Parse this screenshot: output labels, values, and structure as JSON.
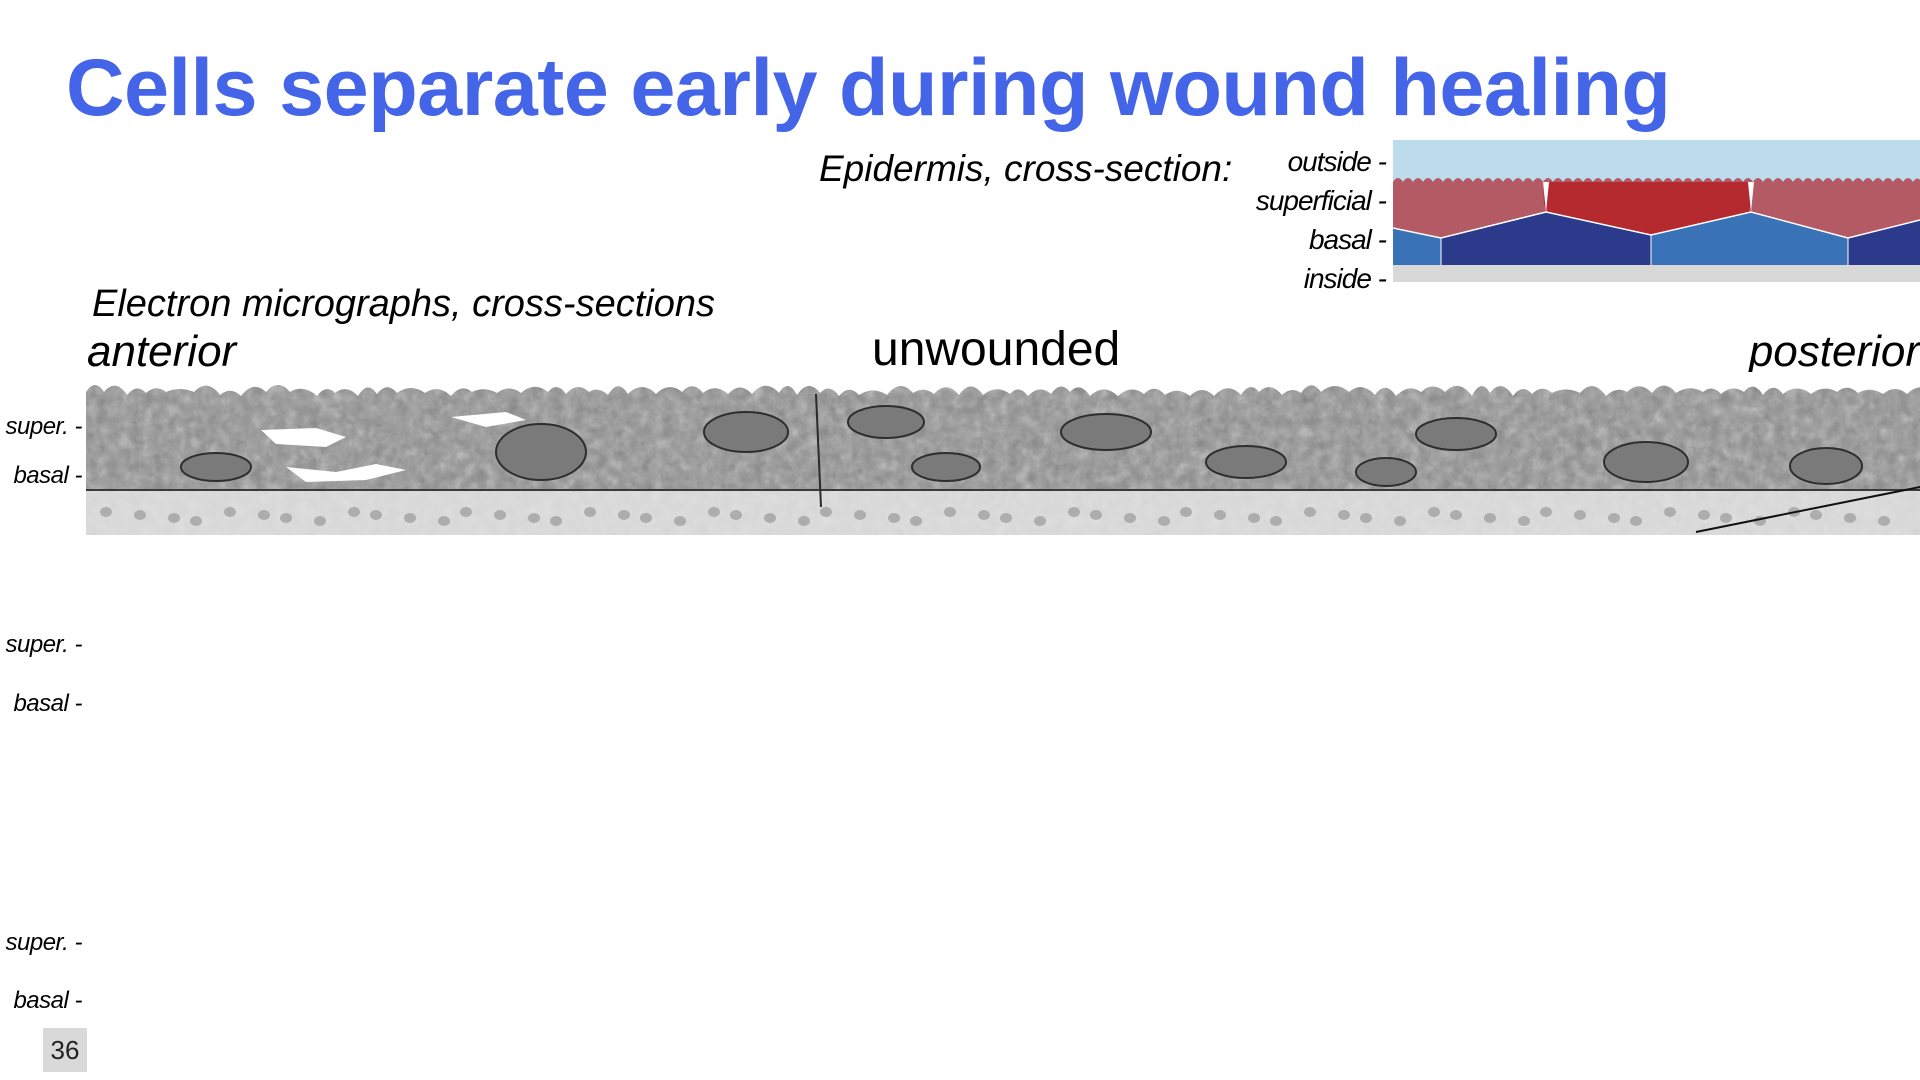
{
  "slide": {
    "title": "Cells separate early during wound healing",
    "slide_number": "36"
  },
  "diagram": {
    "caption": "Epidermis, cross-section:",
    "layer_labels": [
      "outside -",
      "superficial -",
      "basal -",
      "inside -"
    ],
    "colors": {
      "outside": "#bcdcec",
      "superficial_light": "#b45a64",
      "superficial_dark": "#b52a2e",
      "basal_light": "#3a72b7",
      "basal_dark": "#2b3a8a",
      "inside": "#d8d8d8"
    }
  },
  "micrographs": {
    "caption": "Electron micrographs, cross-sections",
    "anterior_label": "anterior",
    "posterior_label": "posterior",
    "panels": [
      {
        "condition": "unwounded",
        "super_label": "super. -",
        "basal_label": "basal -"
      },
      {
        "super_label": "super. -",
        "basal_label": "basal -"
      },
      {
        "super_label": "super. -",
        "basal_label": "basal -"
      }
    ]
  }
}
